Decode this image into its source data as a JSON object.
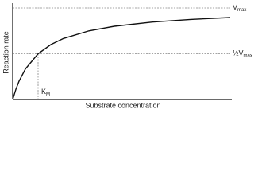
{
  "labels": {
    "vmax": {
      "main": "V",
      "sub": "max"
    },
    "half_vmax": {
      "main": "½V",
      "sub": "max"
    },
    "km": {
      "main": "K",
      "sub": "M"
    },
    "y_axis": "Reaction rate",
    "x_axis": "Substrate concentration"
  }
}
